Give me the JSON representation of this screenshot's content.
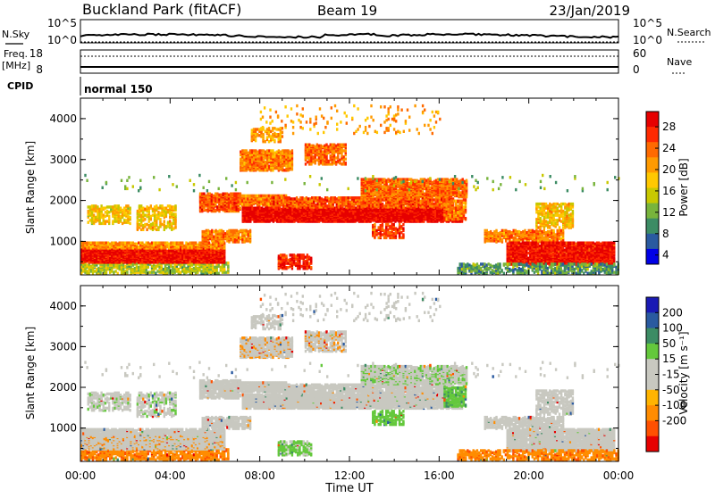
{
  "header": {
    "title": "Buckland Park (fitACF)",
    "beam": "Beam 19",
    "date": "23/Jan/2019"
  },
  "strips": {
    "nsky_label": "N.Sky",
    "nsky_ticks": [
      "10^5",
      "10^0"
    ],
    "nsearch_label": "N.Search",
    "nsearch_ticks": [
      "10^5",
      "10^0"
    ],
    "freq_label_1": "Freq.",
    "freq_label_2": "[MHz]",
    "freq_ticks": [
      "18",
      "8"
    ],
    "nave_label": "Nave",
    "nave_ticks": [
      "60",
      "0"
    ],
    "cpid_label": "CPID",
    "cpid_value": "normal 150"
  },
  "chart_data": [
    {
      "type": "heatmap",
      "name": "power",
      "ylabel": "Slant Range [km]",
      "xlim_hours": [
        0,
        24
      ],
      "ylim_km": [
        180,
        4500
      ],
      "y_ticks": [
        "1000",
        "2000",
        "3000",
        "4000"
      ],
      "colorbar_label": "Power [dB]",
      "colorbar_ticks": [
        "28",
        "24",
        "20",
        "16",
        "12",
        "8",
        "4"
      ],
      "colorbar_colors": [
        "#e60000",
        "#ff2a00",
        "#ff6a00",
        "#ff9a00",
        "#ffc800",
        "#c8c800",
        "#78b43c",
        "#3c8c64",
        "#2a5aa0",
        "#0000e6"
      ]
    },
    {
      "type": "heatmap",
      "name": "velocity",
      "ylabel": "Slant Range [km]",
      "xlim_hours": [
        0,
        24
      ],
      "ylim_km": [
        180,
        4500
      ],
      "y_ticks": [
        "1000",
        "2000",
        "3000",
        "4000"
      ],
      "colorbar_label": "Velocity [m s⁻¹]",
      "colorbar_ticks": [
        "200",
        "100",
        "50",
        "15",
        "-15",
        "-50",
        "-100",
        "-200"
      ],
      "colorbar_colors": [
        "#1a1ab4",
        "#2a5aa0",
        "#3c8c64",
        "#64c83c",
        "#c8c8c0",
        "#c8c8c0",
        "#ffb400",
        "#ff8c00",
        "#ff5000",
        "#e60000"
      ]
    }
  ],
  "xaxis": {
    "ticks": [
      "00:00",
      "04:00",
      "08:00",
      "12:00",
      "16:00",
      "20:00",
      "00:00"
    ],
    "label": "Time UT"
  }
}
